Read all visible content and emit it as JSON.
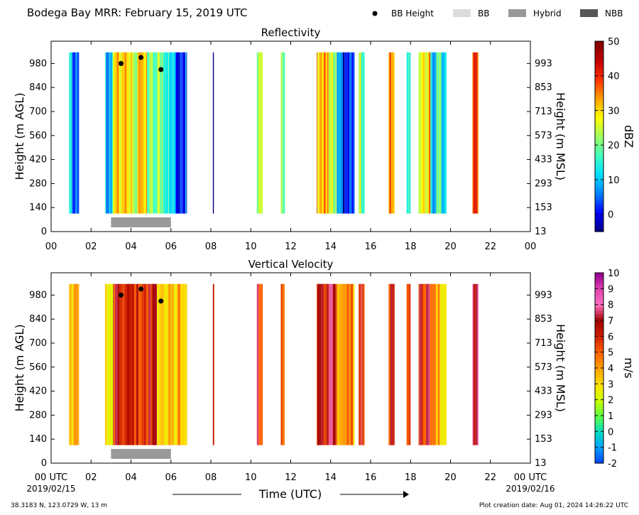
{
  "title": "Bodega Bay MRR:  February 15, 2019 UTC",
  "legend": {
    "items": [
      {
        "label": "BB Height",
        "kind": "dot",
        "color": "#000000"
      },
      {
        "label": "BB",
        "kind": "swatch",
        "color": "#dcdcdc"
      },
      {
        "label": "Hybrid",
        "kind": "swatch",
        "color": "#999999"
      },
      {
        "label": "NBB",
        "kind": "swatch",
        "color": "#555555"
      }
    ]
  },
  "footer": {
    "location": "38.3183 N, 123.0729 W, 13 m",
    "creation": "Plot creation date: Aug 01, 2024 14:26:22 UTC"
  },
  "chart_data": [
    {
      "type": "heatmap",
      "title": "Reflectivity",
      "ylabel": "Height (m AGL)",
      "ylabel_right": "Height (m MSL)",
      "yticks": [
        "0",
        "140",
        "280",
        "420",
        "560",
        "700",
        "840",
        "980"
      ],
      "yticks_right": [
        "13",
        "153",
        "293",
        "433",
        "573",
        "713",
        "853",
        "993"
      ],
      "xticks": [
        "00",
        "02",
        "04",
        "06",
        "08",
        "10",
        "12",
        "14",
        "16",
        "18",
        "20",
        "22",
        "00"
      ],
      "xlim_hours": [
        0,
        24
      ],
      "ylim_m": [
        0,
        1110
      ],
      "colorbar": {
        "label": "dBZ",
        "ticks": [
          "0",
          "10",
          "20",
          "30",
          "40",
          "50"
        ],
        "min": -5,
        "max": 50,
        "stops": [
          "#00007f",
          "#0000ff",
          "#0080ff",
          "#00e0ff",
          "#40ffc0",
          "#a0ff60",
          "#ffff00",
          "#ffa000",
          "#ff3000",
          "#c00000",
          "#7f0000"
        ]
      },
      "bb_height_points": [
        {
          "hour": 3.5,
          "m": 980
        },
        {
          "hour": 4.5,
          "m": 1015
        },
        {
          "hour": 5.5,
          "m": 945
        }
      ],
      "bb_type_segments": [
        {
          "start": 3.0,
          "end": 6.0,
          "type": "Hybrid"
        }
      ],
      "rain_periods": [
        {
          "start": 0.9,
          "end": 1.4,
          "level": 8
        },
        {
          "start": 2.7,
          "end": 3.1,
          "level": 10
        },
        {
          "start": 3.1,
          "end": 3.9,
          "level": 33
        },
        {
          "start": 3.9,
          "end": 4.8,
          "level": 27
        },
        {
          "start": 4.8,
          "end": 5.9,
          "level": 20
        },
        {
          "start": 5.9,
          "end": 6.8,
          "level": 6
        },
        {
          "start": 8.1,
          "end": 8.15,
          "level": 0
        },
        {
          "start": 10.3,
          "end": 10.6,
          "level": 22
        },
        {
          "start": 11.5,
          "end": 11.7,
          "level": 18
        },
        {
          "start": 13.3,
          "end": 13.9,
          "level": 32
        },
        {
          "start": 13.9,
          "end": 14.3,
          "level": 22
        },
        {
          "start": 14.3,
          "end": 15.2,
          "level": 2
        },
        {
          "start": 15.4,
          "end": 15.7,
          "level": 22
        },
        {
          "start": 16.9,
          "end": 17.2,
          "level": 33
        },
        {
          "start": 17.8,
          "end": 18.0,
          "level": 12
        },
        {
          "start": 18.4,
          "end": 19.0,
          "level": 30
        },
        {
          "start": 19.0,
          "end": 19.8,
          "level": 14
        },
        {
          "start": 21.1,
          "end": 21.4,
          "level": 35
        }
      ]
    },
    {
      "type": "heatmap",
      "title": "Vertical Velocity",
      "ylabel": "Height (m AGL)",
      "ylabel_right": "Height (m MSL)",
      "yticks": [
        "0",
        "140",
        "280",
        "420",
        "560",
        "700",
        "840",
        "980"
      ],
      "yticks_right": [
        "13",
        "153",
        "293",
        "433",
        "573",
        "713",
        "853",
        "993"
      ],
      "xticks": [
        "00 UTC",
        "02",
        "04",
        "06",
        "08",
        "10",
        "12",
        "14",
        "16",
        "18",
        "20",
        "22",
        "00 UTC"
      ],
      "xlim_hours": [
        0,
        24
      ],
      "ylim_m": [
        0,
        1110
      ],
      "date_left": "2019/02/15",
      "date_right": "2019/02/16",
      "xlabel": "Time (UTC)",
      "colorbar": {
        "label": "m/s",
        "ticks": [
          "-2",
          "-1",
          "0",
          "1",
          "2",
          "3",
          "4",
          "5",
          "6",
          "7",
          "8",
          "9",
          "10"
        ],
        "min": -2,
        "max": 10,
        "stops": [
          "#0040ff",
          "#00a0ff",
          "#00e0c0",
          "#60ff40",
          "#d0ff00",
          "#ffe000",
          "#ffa000",
          "#ff6000",
          "#d02000",
          "#a00000",
          "#ff70c0",
          "#e040b0",
          "#900090"
        ]
      },
      "bb_height_points": [
        {
          "hour": 3.5,
          "m": 980
        },
        {
          "hour": 4.5,
          "m": 1015
        },
        {
          "hour": 5.5,
          "m": 945
        }
      ],
      "bb_type_segments": [
        {
          "start": 3.0,
          "end": 6.0,
          "type": "Hybrid"
        }
      ],
      "rain_periods": [
        {
          "start": 0.9,
          "end": 1.4,
          "level": 4
        },
        {
          "start": 2.7,
          "end": 3.1,
          "level": 3.5
        },
        {
          "start": 3.1,
          "end": 5.3,
          "level": 6.3
        },
        {
          "start": 5.3,
          "end": 6.8,
          "level": 3.6
        },
        {
          "start": 8.1,
          "end": 8.15,
          "level": 6
        },
        {
          "start": 10.3,
          "end": 10.6,
          "level": 6.2
        },
        {
          "start": 11.5,
          "end": 11.7,
          "level": 5.5
        },
        {
          "start": 13.3,
          "end": 13.9,
          "level": 6.2
        },
        {
          "start": 13.9,
          "end": 14.3,
          "level": 6.5
        },
        {
          "start": 14.3,
          "end": 15.2,
          "level": 4
        },
        {
          "start": 15.4,
          "end": 15.7,
          "level": 6.2
        },
        {
          "start": 16.9,
          "end": 17.2,
          "level": 6.3
        },
        {
          "start": 17.8,
          "end": 18.0,
          "level": 6
        },
        {
          "start": 18.4,
          "end": 19.0,
          "level": 6.4
        },
        {
          "start": 19.0,
          "end": 19.8,
          "level": 3.8
        },
        {
          "start": 21.1,
          "end": 21.4,
          "level": 7.5
        }
      ]
    }
  ]
}
